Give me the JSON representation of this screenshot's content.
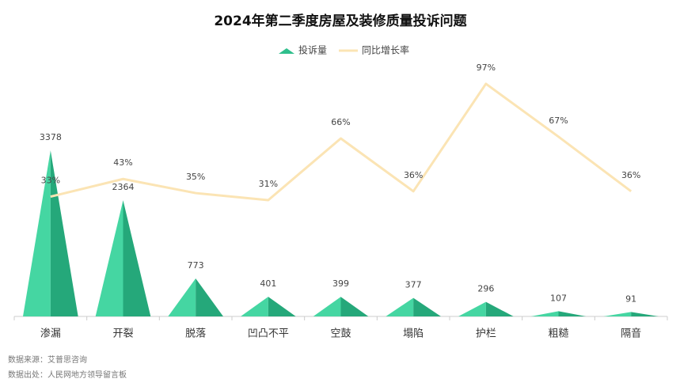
{
  "chart_data": {
    "type": "pictorial-bar-line",
    "title": "2024年第二季度房屋及装修质量投诉问题",
    "categories": [
      "渗漏",
      "开裂",
      "脱落",
      "凹凸不平",
      "空鼓",
      "塌陷",
      "护栏",
      "粗糙",
      "隔音"
    ],
    "series": [
      {
        "name": "投诉量",
        "color": "#2fbf8c",
        "values": [
          3378,
          2364,
          773,
          401,
          399,
          377,
          296,
          107,
          91
        ]
      },
      {
        "name": "同比增长率",
        "color": "#fbe4b4",
        "axis": "y2",
        "values": [
          33,
          43,
          35,
          31,
          66,
          36,
          97,
          67,
          36
        ],
        "value_labels": [
          "33%",
          "43%",
          "35%",
          "31%",
          "66%",
          "36%",
          "97%",
          "67%",
          "36%"
        ]
      }
    ],
    "ylim": [
      0,
      5200
    ],
    "y2lim": [
      -35,
      110
    ],
    "legend": "top",
    "sources": [
      "数据来源：艾普思咨询",
      "数据出处：人民网地方领导留言板"
    ]
  }
}
